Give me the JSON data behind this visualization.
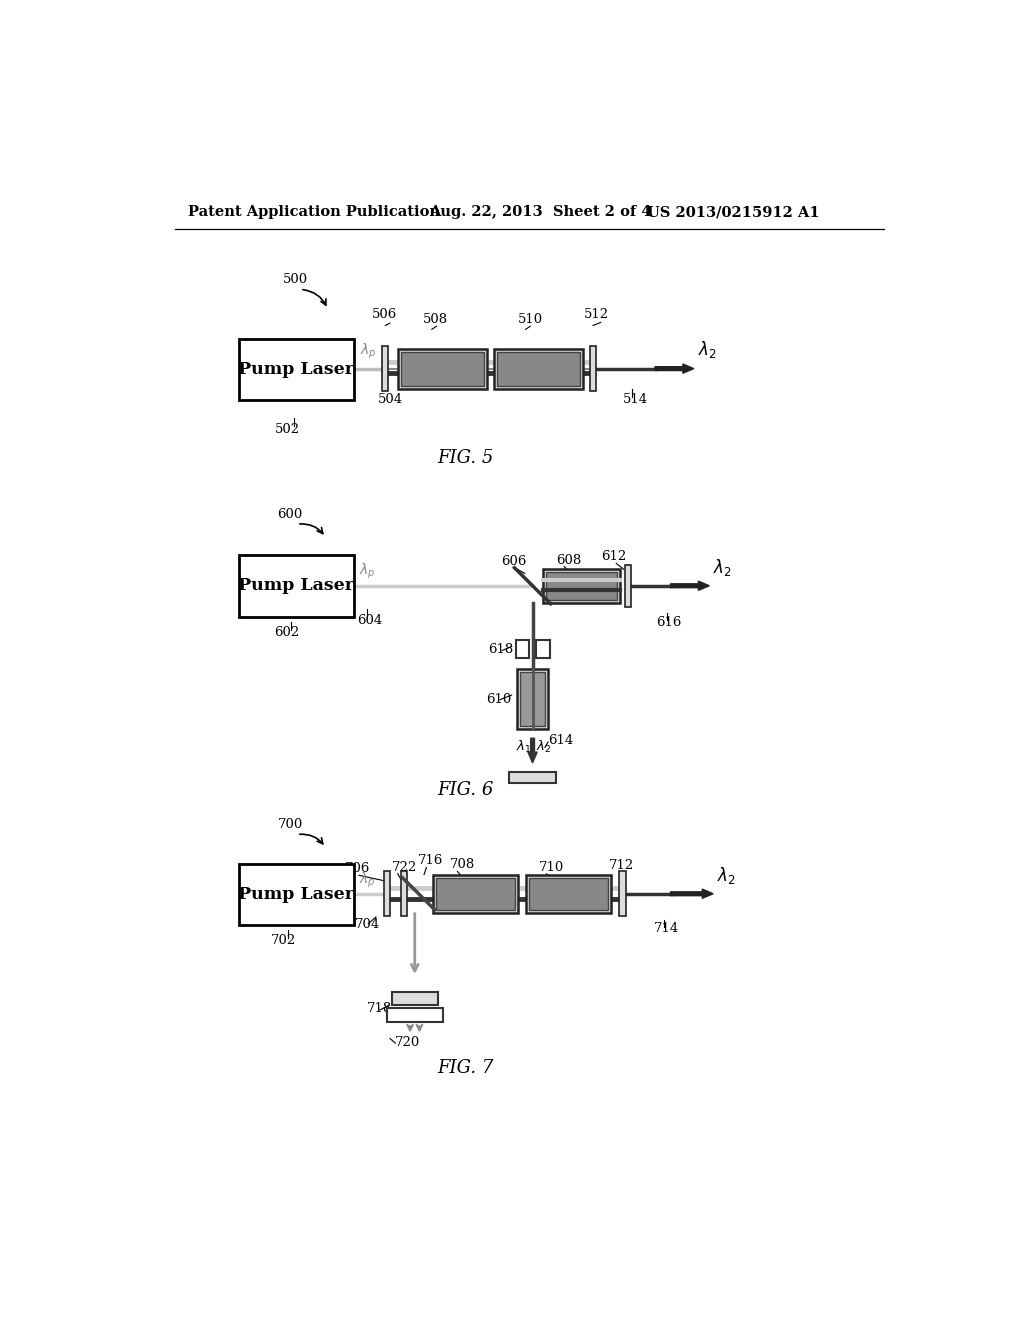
{
  "bg_color": "#ffffff",
  "header_left": "Patent Application Publication",
  "header_mid": "Aug. 22, 2013  Sheet 2 of 4",
  "header_right": "US 2013/0215912 A1",
  "fig5_label": "FIG. 5",
  "fig6_label": "FIG. 6",
  "fig7_label": "FIG. 7",
  "pump_laser_text": "Pump Laser",
  "labels": {
    "500": "500",
    "502": "502",
    "504": "504",
    "506": "506",
    "508": "508",
    "510": "510",
    "512": "512",
    "514": "514",
    "600": "600",
    "602": "602",
    "604": "604",
    "606": "606",
    "608": "608",
    "610": "610",
    "612": "612",
    "614": "614",
    "616": "616",
    "618": "618",
    "700": "700",
    "702": "702",
    "704": "704",
    "706": "706",
    "708": "708",
    "710": "710",
    "712": "712",
    "714": "714",
    "716": "716",
    "718": "718",
    "720": "720",
    "722": "722"
  }
}
